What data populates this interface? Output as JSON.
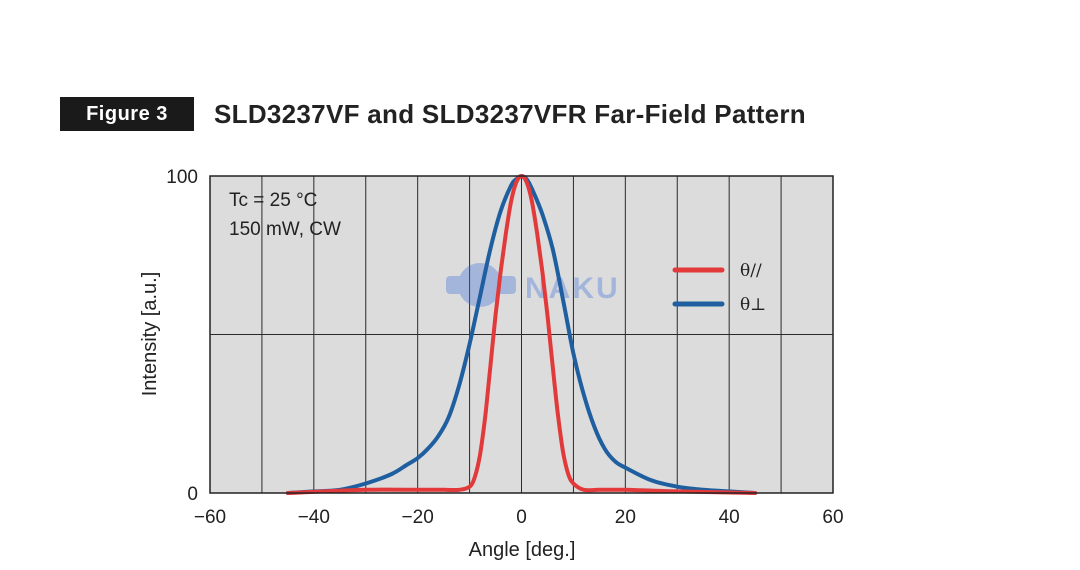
{
  "header": {
    "badge": "Figure 3",
    "title": "SLD3237VF and SLD3237VFR Far-Field Pattern"
  },
  "watermark": {
    "text": "NAKU"
  },
  "chart_data": {
    "type": "line",
    "xlabel": "Angle [deg.]",
    "ylabel": "Intensity [a.u.]",
    "xlim": [
      -60,
      60
    ],
    "ylim": [
      0,
      100
    ],
    "x_ticks": [
      -60,
      -40,
      -20,
      0,
      20,
      40,
      60
    ],
    "x_tick_labels": [
      "−60",
      "−40",
      "−20",
      "0",
      "20",
      "40",
      "60"
    ],
    "y_ticks": [
      0,
      100
    ],
    "y_tick_labels": [
      "0",
      "100"
    ],
    "grid": {
      "vertical_every": 10,
      "horizontal": [
        50
      ]
    },
    "plot_background": "#dcdcdc",
    "annotations": [
      "Tc = 25 °C",
      "150 mW, CW"
    ],
    "legend_position": "right",
    "series": [
      {
        "name": "θ//",
        "color": "#e23a3a",
        "x": [
          -45,
          -30,
          -20,
          -15,
          -12,
          -10,
          -9,
          -8,
          -7,
          -6,
          -5,
          -4,
          -3,
          -2,
          -1,
          0,
          1,
          2,
          3,
          4,
          5,
          6,
          7,
          8,
          9,
          10,
          12,
          15,
          20,
          30,
          45
        ],
        "y": [
          0,
          1,
          1,
          1,
          1,
          2,
          5,
          12,
          24,
          40,
          56,
          70,
          82,
          92,
          98,
          100,
          98,
          92,
          82,
          70,
          56,
          40,
          25,
          13,
          6,
          3,
          1,
          1,
          1,
          0.5,
          0
        ]
      },
      {
        "name": "θ⊥",
        "color": "#1f5fa0",
        "x": [
          -45,
          -40,
          -35,
          -30,
          -25,
          -22,
          -20,
          -18,
          -16,
          -14,
          -12,
          -10,
          -8,
          -6,
          -4,
          -2,
          -1,
          0,
          1,
          2,
          4,
          6,
          8,
          10,
          12,
          14,
          16,
          18,
          20,
          25,
          30,
          35,
          40,
          45
        ],
        "y": [
          0,
          0.5,
          1,
          3,
          6,
          9,
          11,
          14,
          18,
          24,
          34,
          47,
          62,
          77,
          89,
          97,
          99,
          100,
          99,
          96,
          88,
          77,
          61,
          44,
          31,
          21,
          14,
          10,
          8,
          4,
          2,
          1,
          0.5,
          0
        ]
      }
    ]
  }
}
